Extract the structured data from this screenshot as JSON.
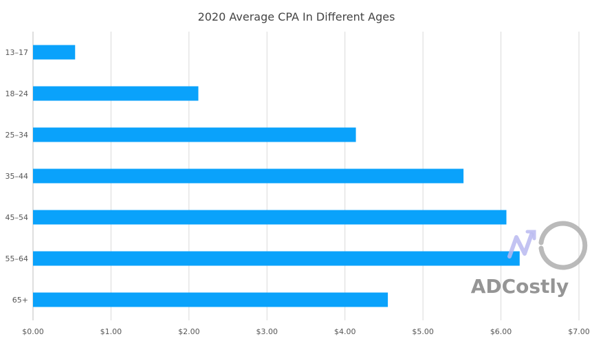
{
  "chart_data": {
    "type": "bar",
    "orientation": "horizontal",
    "title": "2020 Average CPA In Different Ages",
    "categories": [
      "13-17",
      "18-24",
      "25-34",
      "35-44",
      "45-54",
      "55-64",
      "65+"
    ],
    "category_labels": [
      "13–17",
      "18–24",
      "25–34",
      "35–44",
      "45–54",
      "55–64",
      "65+"
    ],
    "values": [
      0.54,
      2.12,
      4.14,
      5.52,
      6.07,
      6.24,
      4.55
    ],
    "xlim": [
      0,
      7
    ],
    "x_ticks": [
      0,
      1,
      2,
      3,
      4,
      5,
      6,
      7
    ],
    "x_tick_labels": [
      "$0.00",
      "$1.00",
      "$2.00",
      "$3.00",
      "$4.00",
      "$5.00",
      "$6.00",
      "$7.00"
    ],
    "xlabel": "",
    "ylabel": "",
    "grid": "vertical",
    "legend": "none",
    "bar_color": "#0aa2fb"
  },
  "watermark": {
    "text": "ADCostly",
    "icon": "adcostly-logo-icon"
  }
}
